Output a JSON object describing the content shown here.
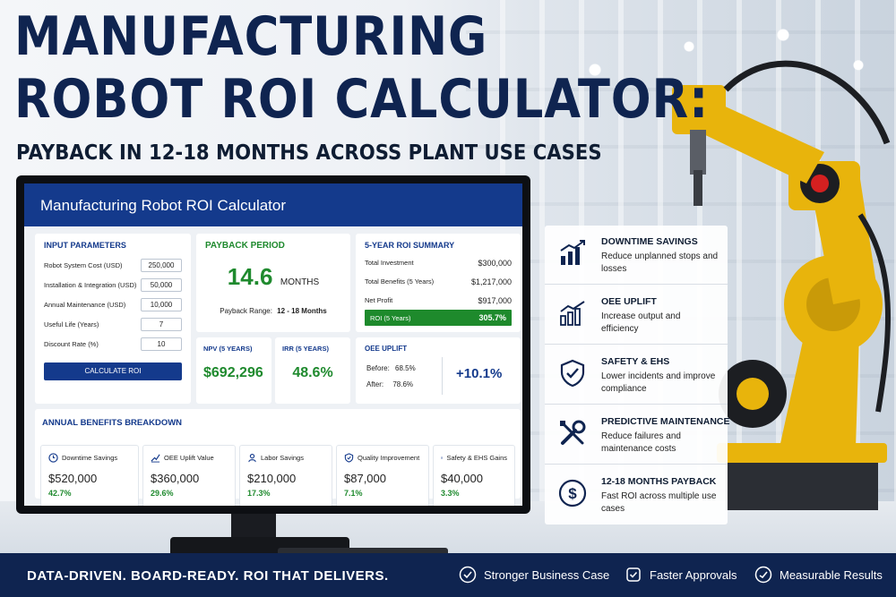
{
  "headline": {
    "line1": "MANUFACTURING",
    "line2": "ROBOT ROI CALCULATOR:",
    "subtitle": "PAYBACK IN 12-18 MONTHS ACROSS PLANT USE CASES"
  },
  "app": {
    "title": "Manufacturing Robot ROI Calculator",
    "inputs": {
      "title": "INPUT PARAMETERS",
      "fields": [
        {
          "label": "Robot System Cost (USD)",
          "value": "250,000"
        },
        {
          "label": "Installation & Integration (USD)",
          "value": "50,000"
        },
        {
          "label": "Annual Maintenance (USD)",
          "value": "10,000"
        },
        {
          "label": "Useful Life (Years)",
          "value": "7"
        },
        {
          "label": "Discount Rate (%)",
          "value": "10"
        }
      ],
      "button": "CALCULATE ROI"
    },
    "payback": {
      "title": "PAYBACK PERIOD",
      "value": "14.6",
      "unit": "MONTHS",
      "range_label": "Payback Range:",
      "range_value": "12 - 18 Months"
    },
    "summary": {
      "title": "5-YEAR ROI SUMMARY",
      "rows": [
        {
          "label": "Total Investment",
          "value": "$300,000"
        },
        {
          "label": "Total Benefits (5 Years)",
          "value": "$1,217,000"
        },
        {
          "label": "Net Profit",
          "value": "$917,000"
        }
      ],
      "roi_label": "ROI (5 Years)",
      "roi_value": "305.7%"
    },
    "npv": {
      "label": "NPV (5 YEARS)",
      "value": "$692,296"
    },
    "irr": {
      "label": "IRR (5 YEARS)",
      "value": "48.6%"
    },
    "oee": {
      "title": "OEE UPLIFT",
      "before_label": "Before:",
      "before_value": "68.5%",
      "after_label": "After:",
      "after_value": "78.6%",
      "delta": "+10.1%"
    },
    "benefits": {
      "title": "ANNUAL BENEFITS BREAKDOWN",
      "items": [
        {
          "label": "Downtime Savings",
          "value": "$520,000",
          "pct": "42.7%",
          "icon": "clock-icon"
        },
        {
          "label": "OEE Uplift Value",
          "value": "$360,000",
          "pct": "29.6%",
          "icon": "trend-icon"
        },
        {
          "label": "Labor Savings",
          "value": "$210,000",
          "pct": "17.3%",
          "icon": "worker-icon"
        },
        {
          "label": "Quality Improvement",
          "value": "$87,000",
          "pct": "7.1%",
          "icon": "shield-check-icon"
        },
        {
          "label": "Safety & EHS Gains",
          "value": "$40,000",
          "pct": "3.3%",
          "icon": "safety-icon"
        }
      ]
    }
  },
  "features": [
    {
      "title": "DOWNTIME SAVINGS",
      "desc": "Reduce unplanned stops and losses",
      "icon": "bar-chart-icon"
    },
    {
      "title": "OEE UPLIFT",
      "desc": "Increase output and efficiency",
      "icon": "growth-chart-icon"
    },
    {
      "title": "SAFETY & EHS",
      "desc": "Lower incidents and improve compliance",
      "icon": "shield-icon"
    },
    {
      "title": "PREDICTIVE MAINTENANCE",
      "desc": "Reduce failures and maintenance costs",
      "icon": "wrench-icon"
    },
    {
      "title": "12-18 MONTHS PAYBACK",
      "desc": "Fast ROI across multiple use cases",
      "icon": "dollar-icon"
    }
  ],
  "footer": {
    "tagline": "DATA-DRIVEN. BOARD-READY. ROI THAT DELIVERS.",
    "items": [
      "Stronger Business Case",
      "Faster Approvals",
      "Measurable Results"
    ]
  },
  "colors": {
    "navy": "#0f2450",
    "blue": "#143a8c",
    "green": "#1f8a2e",
    "robot_yellow": "#e8b40c"
  }
}
